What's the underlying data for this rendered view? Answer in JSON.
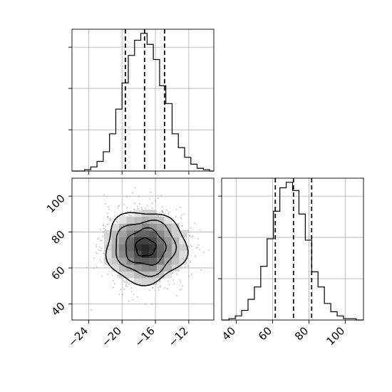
{
  "chart_data": {
    "type": "corner",
    "grid": true,
    "panels": [
      {
        "id": "hist-x",
        "type": "histogram",
        "xlim": [
          -26,
          -9
        ],
        "ylim": [
          0,
          1.03
        ],
        "bin_start": -24.5,
        "bin_width": 0.75,
        "counts": [
          0.01,
          0.03,
          0.07,
          0.14,
          0.27,
          0.45,
          0.64,
          0.84,
          0.95,
          1.0,
          0.92,
          0.81,
          0.62,
          0.49,
          0.27,
          0.17,
          0.1,
          0.05,
          0.02,
          0.01
        ],
        "quantiles": [
          -19.6,
          -17.3,
          -14.9
        ],
        "tick_values_y": [
          0.3,
          0.6,
          0.9
        ]
      },
      {
        "id": "hist-y",
        "type": "histogram",
        "xlim": [
          32,
          110
        ],
        "ylim": [
          0,
          1.03
        ],
        "bin_start": 36,
        "bin_width": 3.5,
        "counts": [
          0.01,
          0.03,
          0.07,
          0.15,
          0.24,
          0.39,
          0.59,
          0.79,
          0.96,
          1.0,
          0.94,
          0.77,
          0.58,
          0.35,
          0.24,
          0.12,
          0.06,
          0.03,
          0.01,
          0.01
        ],
        "quantiles": [
          61.5,
          71.5,
          81.5
        ],
        "tick_values_y": [
          0.3,
          0.6,
          0.9
        ],
        "xticks": [
          "40",
          "60",
          "80",
          "100"
        ],
        "xtick_values": [
          40,
          60,
          80,
          100
        ]
      },
      {
        "id": "joint",
        "type": "2d-density",
        "xlim": [
          -26,
          -9
        ],
        "ylim": [
          31,
          110
        ],
        "xticks": [
          "−24",
          "−20",
          "−16",
          "−12"
        ],
        "xtick_values": [
          -24,
          -20,
          -16,
          -12
        ],
        "yticks": [
          "40",
          "60",
          "80",
          "100"
        ],
        "ytick_values": [
          40,
          60,
          80,
          100
        ],
        "center": [
          -17.2,
          71.5
        ],
        "sigma": [
          2.4,
          10.0
        ],
        "contour_levels_sigma": [
          0.5,
          1.0,
          1.5,
          2.0
        ]
      }
    ]
  }
}
